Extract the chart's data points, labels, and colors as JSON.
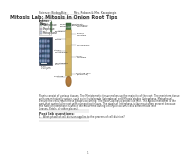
{
  "header_left": "Science: Biology",
  "header_mid": "Date:",
  "header_right": "Mrs. Robson & Mrs. Karagiorgis",
  "title": "Mitosis Lab: Mitosis in Onion Root Tips",
  "section1_label": "Intro:",
  "key_title": "Key:",
  "key_items": [
    "Interphase",
    "Prophase",
    "Metaphase"
  ],
  "key_colors": [
    "#b8d4c8",
    "#d4c8e0",
    "#c8d0e8"
  ],
  "section2_label": "Post lab questions:",
  "question1": "1.  What phase of cell division applies to the process of cell division?",
  "background_color": "#ffffff",
  "text_color": "#333333",
  "para_lines": [
    "Plants consist of various tissues. The Meristematic tissue makes up the majority of the root. The meristem tissue",
    "cells are mitotically active, such as in fruits/seeds (Interphase) and Mitosis stages (Interphase, Metaphase).",
    "Ensure the cells reach these phases occurring. The Root Cap has a protective role. The Apical meristem is the",
    "part that controls the root with elongating tissues. The stage of Interphase is the most often present because",
    "the Rate of Interphase is where the most time during cell cycle occurs (cells differentiate into",
    "Leaves, Petals, or other places)."
  ],
  "root_labels_right": [
    "Epidermis /",
    "Protoderm",
    "",
    "Ground",
    "meristem",
    "",
    "Procambium",
    "",
    "Apical",
    "meristem",
    "",
    "Root cap",
    "cells",
    "(columella)"
  ],
  "root_labels_left": [
    "Epidermis",
    "Cortex",
    "Stele /",
    "Procambium",
    "Meristematic",
    "cells",
    "Root cap"
  ],
  "diagram_note": "100 μm"
}
